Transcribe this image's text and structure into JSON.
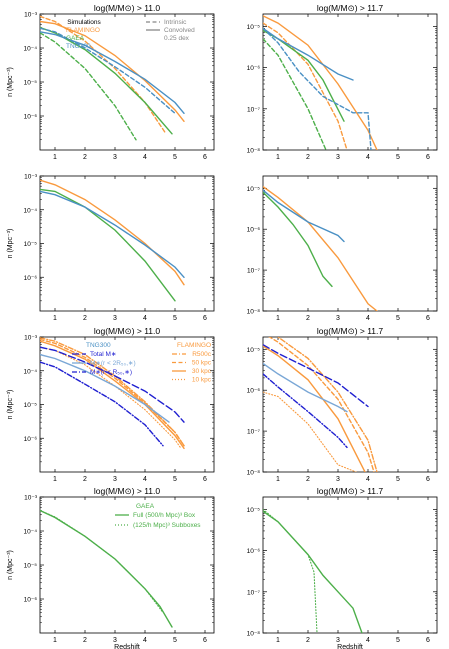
{
  "figure": {
    "x_label": "Redshift",
    "y_label": "n (Mpc⁻³)",
    "mass_cut_titles": [
      "log(M/M⊙) > 11.0",
      "log(M/M⊙) > 11.7"
    ],
    "tick_x": [
      "1",
      "2",
      "3",
      "4",
      "5",
      "6"
    ],
    "tick_y_left": [
      "10⁻³",
      "10⁻⁴",
      "10⁻⁵",
      "10⁻⁶"
    ],
    "tick_y_right": [
      "10⁻⁵",
      "10⁻⁶",
      "10⁻⁷",
      "10⁻⁸"
    ]
  },
  "legends": {
    "row1_sims_title": "Simulations",
    "row1_sims": [
      {
        "label": "FLAMINGO",
        "color": "#f99a3e"
      },
      {
        "label": "GAEA",
        "color": "#4daf4a"
      },
      {
        "label": "TNG300",
        "color": "#4a90c4"
      }
    ],
    "row1_styles": [
      {
        "label": "Intrinsic",
        "style": "dashed"
      },
      {
        "label": "Convolved",
        "style": "solid"
      },
      {
        "label": "0.25 dex",
        "style": "none"
      }
    ],
    "row3_tng_title": "TNG300",
    "row3_tng": [
      {
        "label": "Total M∗",
        "color": "#1f1fd0",
        "style": "longdash"
      },
      {
        "label": "M∗(r < 2R₅₀,∗)",
        "color": "#7aa7d6",
        "style": "solid"
      },
      {
        "label": "M∗(r < R₅₀,∗)",
        "color": "#1f1fd0",
        "style": "dashdot"
      }
    ],
    "row3_flam_title": "FLAMINGO",
    "row3_flam": [
      {
        "label": "R500c",
        "style": "dashdot"
      },
      {
        "label": "50 kpc",
        "style": "dashed"
      },
      {
        "label": "30 kpc",
        "style": "solid"
      },
      {
        "label": "10 kpc",
        "style": "dotted"
      }
    ],
    "row4_title": "GAEA",
    "row4": [
      {
        "label": "Full (500/h Mpc)³ Box",
        "style": "solid"
      },
      {
        "label": "(125/h Mpc)³ Subboxes",
        "style": "dotted"
      }
    ]
  },
  "chart_data": [
    {
      "type": "line",
      "panel": "row1-left",
      "title": "log(M/M⊙) > 11.0",
      "xlabel": "",
      "ylabel": "n (Mpc⁻³)",
      "xlim": [
        0.5,
        6.3
      ],
      "ylim": [
        1e-07,
        0.001
      ],
      "yscale": "log",
      "series": [
        {
          "name": "FLAMINGO",
          "color": "#f99a3e",
          "style": "solid",
          "x": [
            0.5,
            1,
            2,
            3,
            4,
            5,
            5.3
          ],
          "y": [
            0.0006,
            0.00052,
            0.00023,
            6e-05,
            1.1e-05,
            1.5e-06,
            7e-07
          ]
        },
        {
          "name": "FLAMINGO",
          "color": "#f99a3e",
          "style": "dashed",
          "x": [
            0.5,
            1,
            2,
            3,
            4,
            4.7
          ],
          "y": [
            0.00085,
            0.0006,
            0.00016,
            2.5e-05,
            2.5e-06,
            3e-07
          ]
        },
        {
          "name": "GAEA",
          "color": "#4daf4a",
          "style": "solid",
          "x": [
            0.5,
            1,
            2,
            3,
            4,
            4.9
          ],
          "y": [
            0.0004,
            0.00028,
            9e-05,
            1.8e-05,
            2.5e-06,
            3e-07
          ]
        },
        {
          "name": "GAEA",
          "color": "#4daf4a",
          "style": "dashed",
          "x": [
            0.5,
            1,
            2,
            3,
            3.7
          ],
          "y": [
            0.00028,
            0.00015,
            2.5e-05,
            2e-06,
            2e-07
          ]
        },
        {
          "name": "TNG300",
          "color": "#4a90c4",
          "style": "solid",
          "x": [
            0.5,
            1,
            2,
            3,
            4,
            5,
            5.3
          ],
          "y": [
            0.0003,
            0.00025,
            0.00012,
            4e-05,
            1.2e-05,
            2.5e-06,
            1.2e-06
          ]
        },
        {
          "name": "TNG300",
          "color": "#4a90c4",
          "style": "dashed",
          "x": [
            0.5,
            1,
            2,
            3,
            4,
            5
          ],
          "y": [
            0.00038,
            0.0003,
            0.0001,
            2.8e-05,
            7e-06,
            1.2e-06
          ]
        }
      ]
    },
    {
      "type": "line",
      "panel": "row1-right",
      "title": "log(M/M⊙) > 11.7",
      "xlabel": "",
      "ylabel": "",
      "xlim": [
        0.5,
        6.3
      ],
      "ylim": [
        1e-08,
        2e-05
      ],
      "yscale": "log",
      "series": [
        {
          "name": "FLAMINGO",
          "color": "#f99a3e",
          "style": "solid",
          "x": [
            0.5,
            1,
            2,
            3,
            4,
            4.3
          ],
          "y": [
            1.8e-05,
            1.2e-05,
            3.5e-06,
            4e-07,
            3e-08,
            1e-08
          ]
        },
        {
          "name": "FLAMINGO",
          "color": "#f99a3e",
          "style": "dashed",
          "x": [
            0.5,
            1,
            2,
            3,
            3.3
          ],
          "y": [
            1.2e-05,
            7e-06,
            1.2e-06,
            5e-08,
            1e-08
          ]
        },
        {
          "name": "GAEA",
          "color": "#4daf4a",
          "style": "solid",
          "x": [
            0.5,
            1,
            2,
            2.5,
            3.2
          ],
          "y": [
            8e-06,
            5e-06,
            1.5e-06,
            5e-07,
            5e-08
          ]
        },
        {
          "name": "GAEA",
          "color": "#4daf4a",
          "style": "dashed",
          "x": [
            0.5,
            1,
            2,
            2.6
          ],
          "y": [
            5e-06,
            2e-06,
            1e-07,
            1e-08
          ]
        },
        {
          "name": "TNG300",
          "color": "#4a90c4",
          "style": "solid",
          "x": [
            0.5,
            1,
            2,
            3,
            3.5
          ],
          "y": [
            9e-06,
            5e-06,
            2e-06,
            7e-07,
            5e-07
          ]
        },
        {
          "name": "TNG300",
          "color": "#4a90c4",
          "style": "dashed",
          "x": [
            0.5,
            1,
            1.7,
            2.5,
            3.5,
            4.0,
            4.1
          ],
          "y": [
            9e-06,
            4e-06,
            8e-07,
            2e-07,
            8e-08,
            8e-08,
            1e-08
          ]
        }
      ]
    },
    {
      "type": "line",
      "panel": "row2-left",
      "title": "",
      "xlabel": "",
      "ylabel": "n (Mpc⁻³)",
      "xlim": [
        0.5,
        6.3
      ],
      "ylim": [
        1e-07,
        0.001
      ],
      "yscale": "log",
      "series": [
        {
          "name": "FLAMINGO",
          "color": "#f99a3e",
          "style": "solid",
          "x": [
            0.5,
            1,
            2,
            3,
            4,
            5,
            5.3
          ],
          "y": [
            0.00075,
            0.00055,
            0.0002,
            5e-05,
            1e-05,
            1.5e-06,
            6e-07
          ]
        },
        {
          "name": "GAEA",
          "color": "#4daf4a",
          "style": "solid",
          "x": [
            0.5,
            1,
            2,
            3,
            4,
            5
          ],
          "y": [
            0.0004,
            0.00035,
            0.00012,
            2.5e-05,
            3e-06,
            2e-07
          ]
        },
        {
          "name": "TNG300",
          "color": "#4a90c4",
          "style": "solid",
          "x": [
            0.5,
            1,
            2,
            3,
            4,
            5,
            5.3
          ],
          "y": [
            0.00035,
            0.00028,
            0.00012,
            3.5e-05,
            9e-06,
            2e-06,
            1e-06
          ]
        }
      ]
    },
    {
      "type": "line",
      "panel": "row2-right",
      "title": "",
      "xlabel": "",
      "ylabel": "",
      "xlim": [
        0.5,
        6.3
      ],
      "ylim": [
        1e-08,
        2e-05
      ],
      "yscale": "log",
      "series": [
        {
          "name": "FLAMINGO",
          "color": "#f99a3e",
          "style": "solid",
          "x": [
            0.5,
            1,
            2,
            3,
            4,
            4.3
          ],
          "y": [
            1.1e-05,
            6e-06,
            1.5e-06,
            2e-07,
            1.5e-08,
            1e-08
          ]
        },
        {
          "name": "GAEA",
          "color": "#4daf4a",
          "style": "solid",
          "x": [
            0.5,
            1,
            1.5,
            2,
            2.5,
            2.8
          ],
          "y": [
            8e-06,
            3.5e-06,
            1.3e-06,
            4e-07,
            7e-08,
            4e-08
          ]
        },
        {
          "name": "TNG300",
          "color": "#4a90c4",
          "style": "solid",
          "x": [
            0.5,
            1,
            2,
            3,
            3.2
          ],
          "y": [
            9e-06,
            4.5e-06,
            1.5e-06,
            7e-07,
            5e-07
          ]
        }
      ]
    },
    {
      "type": "line",
      "panel": "row3-left",
      "title": "log(M/M⊙) > 11.0",
      "xlabel": "",
      "ylabel": "n (Mpc⁻³)",
      "xlim": [
        0.5,
        6.3
      ],
      "ylim": [
        1e-07,
        0.001
      ],
      "yscale": "log",
      "series": [
        {
          "name": "FLAMINGO R500c",
          "color": "#f99a3e",
          "style": "dashdot",
          "x": [
            0.5,
            1,
            2,
            3,
            4,
            5,
            5.3
          ],
          "y": [
            0.00095,
            0.00075,
            0.0003,
            7e-05,
            1.2e-05,
            1.5e-06,
            6e-07
          ]
        },
        {
          "name": "FLAMINGO 50 kpc",
          "color": "#f99a3e",
          "style": "dashed",
          "x": [
            0.5,
            1,
            2,
            3,
            4,
            5,
            5.3
          ],
          "y": [
            0.00085,
            0.00065,
            0.00025,
            6e-05,
            1.1e-05,
            1.5e-06,
            6e-07
          ]
        },
        {
          "name": "FLAMINGO 30 kpc",
          "color": "#f99a3e",
          "style": "solid",
          "x": [
            0.5,
            1,
            2,
            3,
            4,
            5,
            5.3
          ],
          "y": [
            0.00075,
            0.00055,
            0.00022,
            5e-05,
            1e-05,
            1.2e-06,
            5e-07
          ]
        },
        {
          "name": "FLAMINGO 10 kpc",
          "color": "#f99a3e",
          "style": "dotted",
          "x": [
            0.5,
            1,
            2,
            3,
            4,
            5,
            5.2
          ],
          "y": [
            0.0005,
            0.0004,
            0.00015,
            3.5e-05,
            7e-06,
            9e-07,
            5e-07
          ]
        },
        {
          "name": "Total M∗",
          "color": "#1f1fd0",
          "style": "longdash",
          "x": [
            0.5,
            1,
            2,
            3,
            4,
            5,
            5.3
          ],
          "y": [
            0.0005,
            0.0004,
            0.00018,
            7e-05,
            2.5e-05,
            6e-06,
            3e-06
          ]
        },
        {
          "name": "M∗(r < 2R₅₀,∗)",
          "color": "#7aa7d6",
          "style": "solid",
          "x": [
            0.5,
            1,
            2,
            3,
            4,
            4.8
          ],
          "y": [
            0.0003,
            0.00023,
            0.0001,
            3.5e-05,
            1e-05,
            3e-06
          ]
        },
        {
          "name": "M∗(r < R₅₀,∗)",
          "color": "#1f1fd0",
          "style": "dashdot",
          "x": [
            0.5,
            1,
            2,
            3,
            4,
            4.6
          ],
          "y": [
            0.00018,
            0.00013,
            4e-05,
            1.2e-05,
            2.5e-06,
            6e-07
          ]
        }
      ]
    },
    {
      "type": "line",
      "panel": "row3-right",
      "title": "log(M/M⊙) > 11.7",
      "xlabel": "",
      "ylabel": "",
      "xlim": [
        0.5,
        6.3
      ],
      "ylim": [
        1e-08,
        2e-05
      ],
      "yscale": "log",
      "series": [
        {
          "name": "FLAMINGO R500c",
          "color": "#f99a3e",
          "style": "dashdot",
          "x": [
            0.5,
            1,
            2,
            3,
            4,
            4.3
          ],
          "y": [
            3e-05,
            2e-05,
            6e-06,
            9e-07,
            6e-08,
            1e-08
          ]
        },
        {
          "name": "FLAMINGO 50 kpc",
          "color": "#f99a3e",
          "style": "dashed",
          "x": [
            0.5,
            1,
            2,
            3,
            4,
            4.2
          ],
          "y": [
            2.5e-05,
            1.5e-05,
            4e-06,
            6e-07,
            3e-08,
            1e-08
          ]
        },
        {
          "name": "FLAMINGO 30 kpc",
          "color": "#f99a3e",
          "style": "solid",
          "x": [
            0.5,
            1,
            2,
            3,
            3.9
          ],
          "y": [
            1.2e-05,
            7e-06,
            1.8e-06,
            2e-07,
            1e-08
          ]
        },
        {
          "name": "FLAMINGO 10 kpc",
          "color": "#f99a3e",
          "style": "dotted",
          "x": [
            0.5,
            1,
            2,
            3,
            3.6
          ],
          "y": [
            9e-07,
            7e-07,
            1.5e-07,
            1.5e-08,
            1e-08
          ]
        },
        {
          "name": "Total M∗",
          "color": "#1f1fd0",
          "style": "longdash",
          "x": [
            0.5,
            1,
            2,
            3,
            4
          ],
          "y": [
            1.3e-05,
            8e-06,
            3.5e-06,
            1.5e-06,
            4e-07
          ]
        },
        {
          "name": "M∗(r < 2R₅₀,∗)",
          "color": "#7aa7d6",
          "style": "solid",
          "x": [
            0.5,
            1,
            2,
            3,
            3.3
          ],
          "y": [
            4.5e-06,
            2.5e-06,
            9e-07,
            4e-07,
            3e-07
          ]
        },
        {
          "name": "M∗(r < R₅₀,∗)",
          "color": "#1f1fd0",
          "style": "dashdot",
          "x": [
            0.5,
            1,
            2,
            3,
            3.3
          ],
          "y": [
            2.5e-06,
            1.2e-06,
            3e-07,
            7e-08,
            4e-08
          ]
        }
      ]
    },
    {
      "type": "line",
      "panel": "row4-left",
      "title": "log(M/M⊙) > 11.0",
      "xlabel": "Redshift",
      "ylabel": "n (Mpc⁻³)",
      "xlim": [
        0.5,
        6.3
      ],
      "ylim": [
        1e-07,
        0.001
      ],
      "yscale": "log",
      "series": [
        {
          "name": "Full (500/h Mpc)³ Box",
          "color": "#4daf4a",
          "style": "solid",
          "x": [
            0.5,
            1,
            2,
            3,
            4,
            4.5,
            4.9
          ],
          "y": [
            0.0004,
            0.00025,
            7e-05,
            1.5e-05,
            2e-06,
            6e-07,
            1.5e-07
          ]
        },
        {
          "name": "(125/h Mpc)³ Subboxes",
          "color": "#4daf4a",
          "style": "dotted",
          "x": [
            0.5,
            1,
            2,
            3,
            4,
            4.6
          ],
          "y": [
            0.0004,
            0.00026,
            7e-05,
            1.5e-05,
            2e-06,
            4e-07
          ]
        }
      ]
    },
    {
      "type": "line",
      "panel": "row4-right",
      "title": "log(M/M⊙) > 11.7",
      "xlabel": "Redshift",
      "ylabel": "",
      "xlim": [
        0.5,
        6.3
      ],
      "ylim": [
        1e-08,
        2e-05
      ],
      "yscale": "log",
      "series": [
        {
          "name": "Full (500/h Mpc)³ Box",
          "color": "#4daf4a",
          "style": "solid",
          "x": [
            0.5,
            1,
            2,
            2.5,
            3,
            3.5,
            3.8
          ],
          "y": [
            9e-06,
            5e-06,
            8e-07,
            2.5e-07,
            1e-07,
            4e-08,
            1e-08
          ]
        },
        {
          "name": "(125/h Mpc)³ Subboxes",
          "color": "#4daf4a",
          "style": "dotted",
          "x": [
            0.5,
            1,
            2,
            2.2,
            2.3
          ],
          "y": [
            1e-05,
            5e-06,
            8e-07,
            3e-07,
            1e-08
          ]
        }
      ]
    }
  ]
}
